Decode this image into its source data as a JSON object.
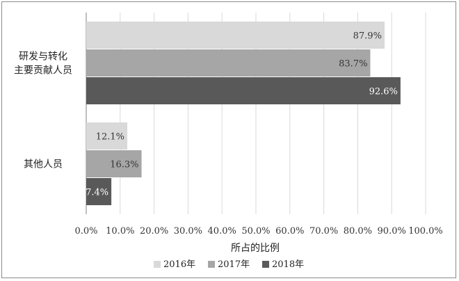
{
  "chart_data": {
    "type": "bar",
    "orientation": "horizontal",
    "categories": [
      [
        "研发与转化",
        "主要贡献人员"
      ],
      [
        "其他人员"
      ]
    ],
    "series": [
      {
        "name": "2016年",
        "values": [
          87.9,
          12.1
        ],
        "color": "#d9d9d9",
        "label_color": "#333333"
      },
      {
        "name": "2017年",
        "values": [
          83.7,
          16.3
        ],
        "color": "#a6a6a6",
        "label_color": "#333333"
      },
      {
        "name": "2018年",
        "values": [
          92.6,
          7.4
        ],
        "color": "#595959",
        "label_color": "#ffffff"
      }
    ],
    "value_labels": [
      [
        "87.9%",
        "12.1%"
      ],
      [
        "83.7%",
        "16.3%"
      ],
      [
        "92.6%",
        "7.4%"
      ]
    ],
    "xlim": [
      0,
      100
    ],
    "xticks": [
      "0.0%",
      "10.0%",
      "20.0%",
      "30.0%",
      "40.0%",
      "50.0%",
      "60.0%",
      "70.0%",
      "80.0%",
      "90.0%",
      "100.0%"
    ],
    "xlabel": "所占的比例",
    "grid": true,
    "legend_position": "bottom"
  }
}
